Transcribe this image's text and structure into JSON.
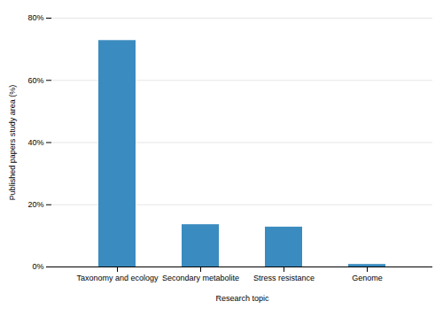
{
  "chart_data": {
    "type": "bar",
    "categories": [
      "Taxonomy and ecology",
      "Secondary metabolite",
      "Stress resistance",
      "Genome"
    ],
    "values": [
      72.8,
      13.6,
      12.8,
      0.8
    ],
    "color": "#3a8bbf",
    "xlabel": "Research topic",
    "ylabel": "Published papers study area (%)",
    "ylim": [
      0,
      80
    ],
    "yticks": [
      {
        "value": 0,
        "label": "0%"
      },
      {
        "value": 20,
        "label": "20%"
      },
      {
        "value": 40,
        "label": "40%"
      },
      {
        "value": 60,
        "label": "60%"
      },
      {
        "value": 80,
        "label": "80%"
      }
    ],
    "grid": true
  }
}
